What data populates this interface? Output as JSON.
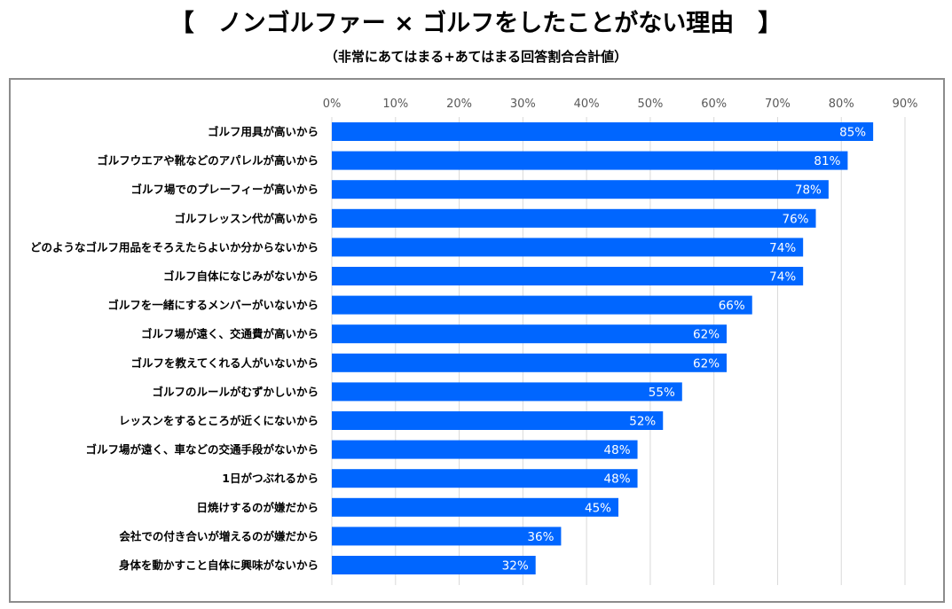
{
  "chart_data": {
    "type": "bar",
    "orientation": "horizontal",
    "title": "【　ノンゴルファー × ゴルフをしたことがない理由　】",
    "subtitle": "（非常にあてはまる+あてはまる回答割合合計値）",
    "xlim": [
      0,
      90
    ],
    "ticks": [
      "0%",
      "10%",
      "20%",
      "30%",
      "40%",
      "50%",
      "60%",
      "70%",
      "80%",
      "90%"
    ],
    "grid": true,
    "bar_color": "#0066ff",
    "categories": [
      "ゴルフ用具が高いから",
      "ゴルフウエアや靴などのアパレルが高いから",
      "ゴルフ場でのプレーフィーが高いから",
      "ゴルフレッスン代が高いから",
      "どのようなゴルフ用品をそろえたらよいか分からないから",
      "ゴルフ自体になじみがないから",
      "ゴルフを一緒にするメンバーがいないから",
      "ゴルフ場が遠く、交通費が高いから",
      "ゴルフを教えてくれる人がいないから",
      "ゴルフのルールがむずかしいから",
      "レッスンをするところが近くにないから",
      "ゴルフ場が遠く、車などの交通手段がないから",
      "1日がつぶれるから",
      "日焼けするのが嫌だから",
      "会社での付き合いが増えるのが嫌だから",
      "身体を動かすこと自体に興味がないから"
    ],
    "values": [
      85,
      81,
      78,
      76,
      74,
      74,
      66,
      62,
      62,
      55,
      52,
      48,
      48,
      45,
      36,
      32
    ],
    "value_labels": [
      "85%",
      "81%",
      "78%",
      "76%",
      "74%",
      "74%",
      "66%",
      "62%",
      "62%",
      "55%",
      "52%",
      "48%",
      "48%",
      "45%",
      "36%",
      "32%"
    ]
  }
}
